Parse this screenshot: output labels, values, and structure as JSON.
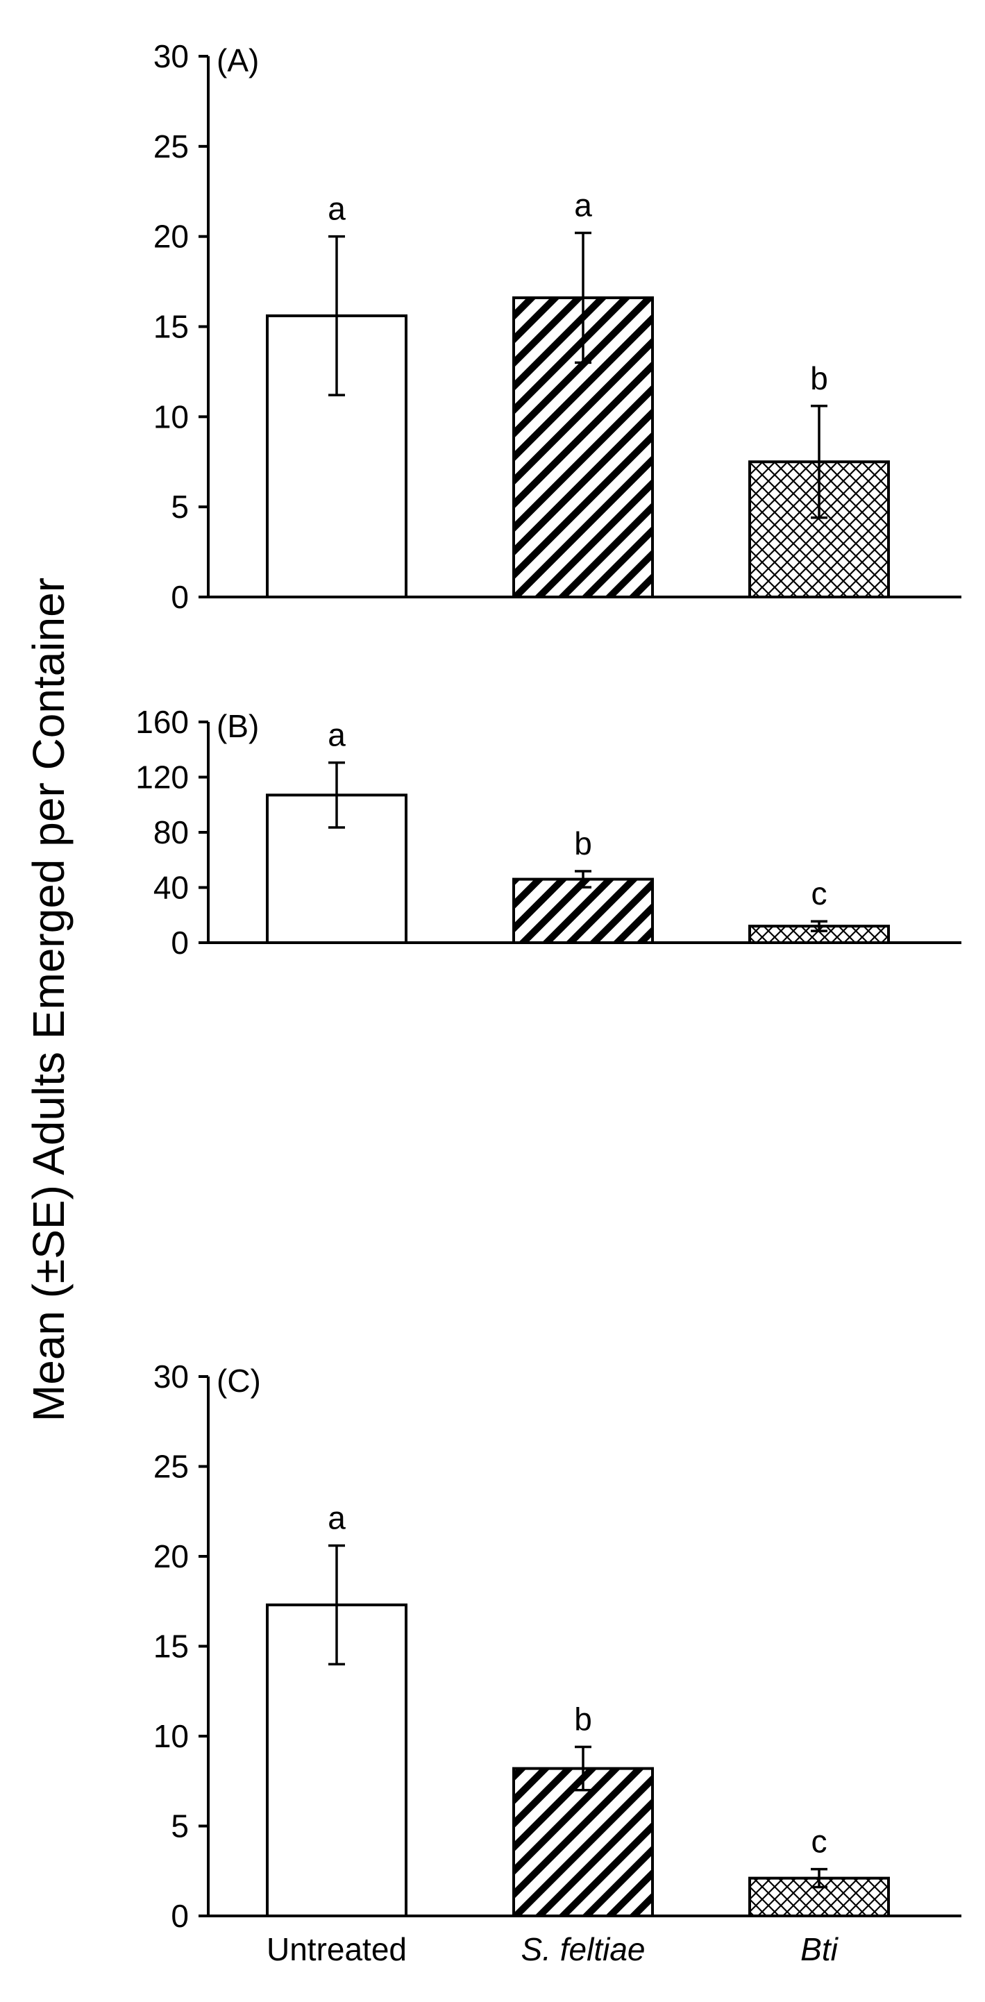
{
  "chart_data": {
    "type": "bar",
    "ylabel": "Mean (±SE) Adults Emerged per Container",
    "categories": [
      "Untreated",
      "S. feltiae",
      "Bti"
    ],
    "category_styles": [
      "plain",
      "italic",
      "italic"
    ],
    "bar_fills": [
      "solid-white",
      "diagonal-stripes",
      "crosshatch"
    ],
    "colors": {
      "bar_stroke": "#000000",
      "bar_fill": "#ffffff",
      "pattern": "#000000"
    },
    "grid": false,
    "legend": "none",
    "panels": [
      {
        "label": "(A)",
        "ylim": [
          0,
          30
        ],
        "yticks": [
          0,
          5,
          10,
          15,
          20,
          25,
          30
        ],
        "values": [
          15.6,
          16.6,
          7.5
        ],
        "errors": [
          4.4,
          3.6,
          3.1
        ],
        "letters": [
          "a",
          "a",
          "b"
        ]
      },
      {
        "label": "(B)",
        "ylim": [
          0,
          160
        ],
        "yticks": [
          0,
          40,
          80,
          120,
          160
        ],
        "values": [
          107,
          46,
          12
        ],
        "errors": [
          23.5,
          5.8,
          3.5
        ],
        "letters": [
          "a",
          "b",
          "c"
        ]
      },
      {
        "label": "(C)",
        "ylim": [
          0,
          30
        ],
        "yticks": [
          0,
          5,
          10,
          15,
          20,
          25,
          30
        ],
        "values": [
          17.3,
          8.2,
          2.1
        ],
        "errors": [
          3.3,
          1.2,
          0.5
        ],
        "letters": [
          "a",
          "b",
          "c"
        ]
      }
    ]
  }
}
